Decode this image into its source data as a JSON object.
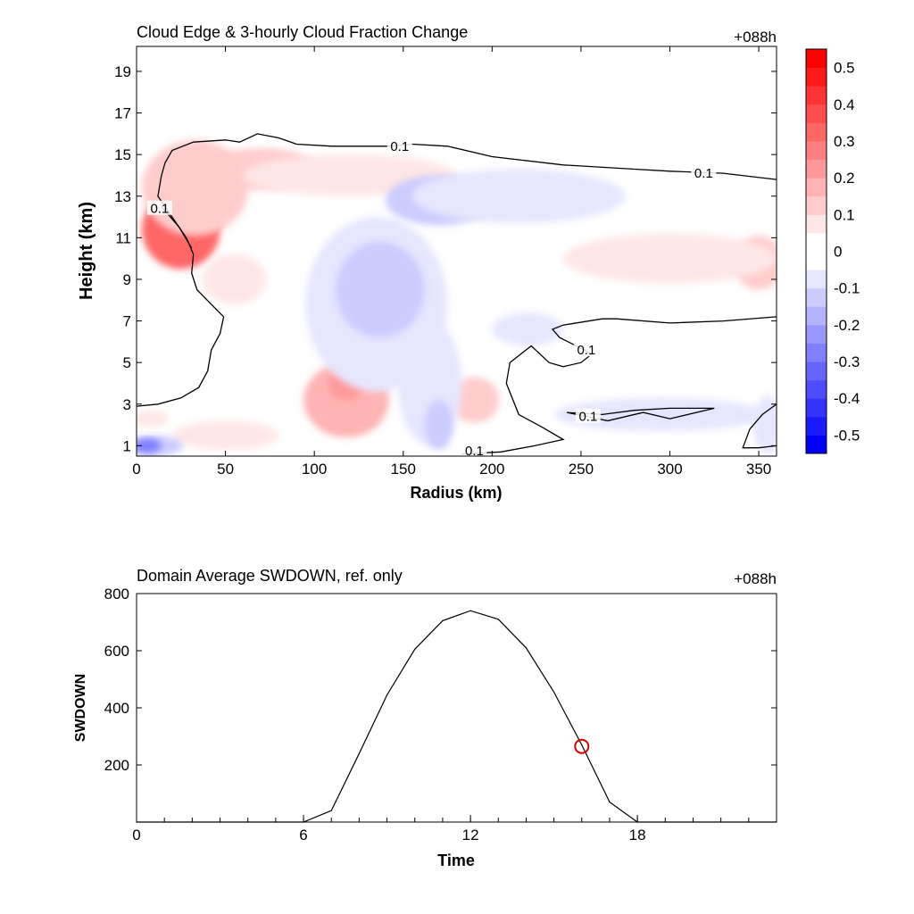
{
  "chart_data": [
    {
      "type": "heatmap",
      "title": "Cloud Edge & 3-hourly Cloud Fraction Change",
      "time_label": "+088h",
      "xlabel": "Radius (km)",
      "ylabel": "Height (km)",
      "xlim": [
        0,
        360
      ],
      "ylim": [
        0.5,
        20.2
      ],
      "xticks": [
        0,
        50,
        100,
        150,
        200,
        250,
        300,
        350
      ],
      "yticks": [
        1,
        3,
        5,
        7,
        9,
        11,
        13,
        15,
        17,
        19
      ],
      "colorbar": {
        "levels": [
          -0.55,
          -0.5,
          -0.45,
          -0.4,
          -0.35,
          -0.3,
          -0.25,
          -0.2,
          -0.15,
          -0.1,
          -0.05,
          0.05,
          0.1,
          0.15,
          0.2,
          0.25,
          0.3,
          0.35,
          0.4,
          0.45,
          0.5,
          0.55
        ],
        "tick_labels": [
          "-0.5",
          "-0.4",
          "-0.3",
          "-0.2",
          "-0.1",
          "0",
          "0.1",
          "0.2",
          "0.3",
          "0.4",
          "0.5"
        ],
        "tick_values": [
          -0.5,
          -0.4,
          -0.3,
          -0.2,
          -0.1,
          0,
          0.1,
          0.2,
          0.3,
          0.4,
          0.5
        ],
        "colors_negative": [
          "#0000ff",
          "#1a1aff",
          "#3333ff",
          "#4d4dff",
          "#6666ff",
          "#8080ff",
          "#9999ff",
          "#b3b3ff",
          "#ccccff",
          "#e6e6ff"
        ],
        "color_neutral": "#ffffff",
        "colors_positive": [
          "#ffe6e6",
          "#ffcccc",
          "#ffb3b3",
          "#ff9999",
          "#ff8080",
          "#ff6666",
          "#ff4d4d",
          "#ff3333",
          "#ff1a1a",
          "#ff0000"
        ]
      },
      "contour_level_label": "0.1",
      "cloud_edge_contours": [
        {
          "points": [
            [
              0,
              2.9
            ],
            [
              12,
              3.0
            ],
            [
              25,
              3.3
            ],
            [
              35,
              3.8
            ],
            [
              40,
              4.6
            ],
            [
              42,
              5.6
            ],
            [
              47,
              6.4
            ],
            [
              49,
              7.2
            ],
            [
              42,
              7.8
            ],
            [
              34,
              8.5
            ],
            [
              31,
              9.3
            ],
            [
              32,
              10.2
            ],
            [
              28,
              11.0
            ],
            [
              20,
              12.0
            ],
            [
              12,
              13.0
            ],
            [
              14,
              14.0
            ],
            [
              16,
              14.6
            ],
            [
              20,
              15.2
            ],
            [
              32,
              15.6
            ],
            [
              50,
              15.7
            ],
            [
              58,
              15.6
            ],
            [
              68,
              16.0
            ],
            [
              80,
              15.8
            ],
            [
              90,
              15.5
            ],
            [
              110,
              15.4
            ],
            [
              130,
              15.4
            ],
            [
              142,
              15.4
            ],
            [
              155,
              15.5
            ],
            [
              175,
              15.4
            ],
            [
              200,
              14.9
            ],
            [
              240,
              14.5
            ],
            [
              280,
              14.3
            ],
            [
              300,
              14.2
            ],
            [
              330,
              14.1
            ],
            [
              360,
              13.8
            ]
          ],
          "labels": [
            {
              "x": 148,
              "y": 15.4,
              "text": "0.1"
            },
            {
              "x": 319,
              "y": 14.1,
              "text": "0.1"
            }
          ]
        },
        {
          "points": [
            [
              360,
              7.2
            ],
            [
              330,
              7.0
            ],
            [
              300,
              6.9
            ],
            [
              270,
              7.1
            ],
            [
              262,
              7.1
            ],
            [
              240,
              6.8
            ],
            [
              234,
              6.6
            ],
            [
              238,
              6.2
            ],
            [
              245,
              5.9
            ],
            [
              252,
              5.6
            ],
            [
              256,
              5.4
            ]
          ],
          "labels": [
            {
              "x": 253,
              "y": 5.6,
              "text": "0.1"
            }
          ]
        },
        {
          "points": [
            [
              256,
              5.4
            ],
            [
              250,
              5.0
            ],
            [
              240,
              4.8
            ],
            [
              232,
              5.0
            ],
            [
              222,
              5.8
            ],
            [
              210,
              5.0
            ],
            [
              208,
              4.0
            ],
            [
              215,
              2.5
            ],
            [
              228,
              1.9
            ],
            [
              240,
              1.3
            ],
            [
              224,
              1.0
            ],
            [
              205,
              0.7
            ],
            [
              183,
              0.6
            ]
          ],
          "labels": [
            {
              "x": 190,
              "y": 0.75,
              "text": "0.1"
            }
          ]
        },
        {
          "points": [
            [
              242,
              2.6
            ],
            [
              265,
              2.2
            ],
            [
              285,
              2.6
            ],
            [
              300,
              2.3
            ],
            [
              325,
              2.8
            ],
            [
              300,
              2.8
            ],
            [
              280,
              2.7
            ],
            [
              262,
              2.5
            ],
            [
              242,
              2.6
            ]
          ],
          "labels": [
            {
              "x": 254,
              "y": 2.4,
              "text": "0.1"
            }
          ]
        },
        {
          "points": [
            [
              360,
              3.0
            ],
            [
              352,
              2.5
            ],
            [
              345,
              1.8
            ],
            [
              341,
              0.9
            ],
            [
              350,
              0.9
            ],
            [
              360,
              1.0
            ]
          ],
          "labels": []
        },
        {
          "points": [
            [
              14,
              12.5
            ],
            [
              24,
              11.5
            ],
            [
              31,
              10.5
            ]
          ],
          "labels": [
            {
              "x": 13,
              "y": 12.4,
              "text": "0.1"
            }
          ]
        }
      ],
      "anomaly_blobs": [
        {
          "cx": 25,
          "cy": 11.4,
          "rx": 22,
          "ry": 1.9,
          "value": 0.3
        },
        {
          "cx": 26,
          "cy": 11.6,
          "rx": 9,
          "ry": 0.9,
          "value": 0.35
        },
        {
          "cx": 33,
          "cy": 13.4,
          "rx": 30,
          "ry": 2.3,
          "value": 0.12
        },
        {
          "cx": 70,
          "cy": 14.3,
          "rx": 32,
          "ry": 1.0,
          "value": 0.15
        },
        {
          "cx": 120,
          "cy": 14.0,
          "rx": 60,
          "ry": 1.0,
          "value": 0.07
        },
        {
          "cx": 55,
          "cy": 9.0,
          "rx": 18,
          "ry": 1.2,
          "value": 0.06
        },
        {
          "cx": 118,
          "cy": 3.2,
          "rx": 24,
          "ry": 1.8,
          "value": 0.17
        },
        {
          "cx": 118,
          "cy": 4.0,
          "rx": 10,
          "ry": 0.8,
          "value": 0.22
        },
        {
          "cx": 190,
          "cy": 3.2,
          "rx": 14,
          "ry": 1.1,
          "value": 0.12
        },
        {
          "cx": 350,
          "cy": 9.8,
          "rx": 14,
          "ry": 1.3,
          "value": 0.12
        },
        {
          "cx": 300,
          "cy": 10.0,
          "rx": 60,
          "ry": 1.2,
          "value": 0.07
        },
        {
          "cx": 50,
          "cy": 1.5,
          "rx": 30,
          "ry": 0.7,
          "value": 0.07
        },
        {
          "cx": 8,
          "cy": 2.3,
          "rx": 10,
          "ry": 0.4,
          "value": 0.08
        },
        {
          "cx": 135,
          "cy": 7.8,
          "rx": 40,
          "ry": 4.2,
          "value": -0.07
        },
        {
          "cx": 137,
          "cy": 8.5,
          "rx": 25,
          "ry": 2.3,
          "value": -0.15
        },
        {
          "cx": 170,
          "cy": 12.8,
          "rx": 30,
          "ry": 1.2,
          "value": -0.12
        },
        {
          "cx": 215,
          "cy": 13.0,
          "rx": 60,
          "ry": 1.3,
          "value": -0.07
        },
        {
          "cx": 220,
          "cy": 6.6,
          "rx": 20,
          "ry": 0.8,
          "value": -0.07
        },
        {
          "cx": 165,
          "cy": 4.0,
          "rx": 18,
          "ry": 3.0,
          "value": -0.06
        },
        {
          "cx": 170,
          "cy": 2.0,
          "rx": 8,
          "ry": 1.2,
          "value": -0.1
        },
        {
          "cx": 295,
          "cy": 2.5,
          "rx": 60,
          "ry": 0.8,
          "value": -0.08
        },
        {
          "cx": 355,
          "cy": 2.0,
          "rx": 8,
          "ry": 1.4,
          "value": -0.08
        },
        {
          "cx": 10,
          "cy": 1.0,
          "rx": 16,
          "ry": 0.5,
          "value": -0.15
        },
        {
          "cx": 6,
          "cy": 1.0,
          "rx": 8,
          "ry": 0.35,
          "value": -0.25
        }
      ]
    },
    {
      "type": "line",
      "title": "Domain Average SWDOWN, ref. only",
      "time_label": "+088h",
      "xlabel": "Time",
      "ylabel": "SWDOWN",
      "xlim": [
        0,
        23
      ],
      "ylim": [
        0,
        800
      ],
      "xticks": [
        0,
        6,
        12,
        18
      ],
      "yticks": [
        200,
        400,
        600,
        800
      ],
      "x": [
        0,
        1,
        2,
        3,
        4,
        5,
        6,
        7,
        8,
        9,
        10,
        11,
        12,
        13,
        14,
        15,
        16,
        17,
        18,
        19,
        20,
        21,
        22,
        23
      ],
      "values": [
        0,
        0,
        0,
        0,
        0,
        0,
        0,
        40,
        240,
        445,
        605,
        705,
        740,
        710,
        610,
        455,
        270,
        70,
        0,
        0,
        0,
        0,
        0,
        0
      ],
      "marker": {
        "x": 16,
        "y": 265,
        "color": "#e00000"
      },
      "line_color": "#000000"
    }
  ]
}
